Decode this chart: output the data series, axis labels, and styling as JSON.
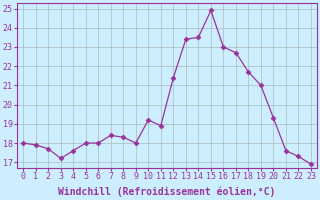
{
  "x": [
    0,
    1,
    2,
    3,
    4,
    5,
    6,
    7,
    8,
    9,
    10,
    11,
    12,
    13,
    14,
    15,
    16,
    17,
    18,
    19,
    20,
    21,
    22,
    23
  ],
  "y": [
    18.0,
    17.9,
    17.7,
    17.2,
    17.6,
    18.0,
    18.0,
    18.4,
    18.3,
    18.0,
    19.2,
    18.9,
    21.4,
    23.4,
    23.5,
    24.9,
    23.0,
    22.7,
    21.7,
    21.0,
    19.3,
    17.6,
    17.3,
    16.9
  ],
  "line_color": "#993399",
  "marker": "D",
  "markersize": 2.5,
  "linewidth": 0.9,
  "bg_color": "#cceeff",
  "grid_color": "#aabbbb",
  "xlabel": "Windchill (Refroidissement éolien,°C)",
  "xlabel_fontsize": 7,
  "tick_color": "#993399",
  "ylabel_ticks": [
    17,
    18,
    19,
    20,
    21,
    22,
    23,
    24,
    25
  ],
  "xtick_labels": [
    "0",
    "1",
    "2",
    "3",
    "4",
    "5",
    "6",
    "7",
    "8",
    "9",
    "10",
    "11",
    "12",
    "13",
    "14",
    "15",
    "16",
    "17",
    "18",
    "19",
    "20",
    "21",
    "22",
    "23"
  ],
  "ylim": [
    16.7,
    25.3
  ],
  "xlim": [
    -0.5,
    23.5
  ],
  "tick_fontsize": 6,
  "xlabel_fontsize_val": 7
}
